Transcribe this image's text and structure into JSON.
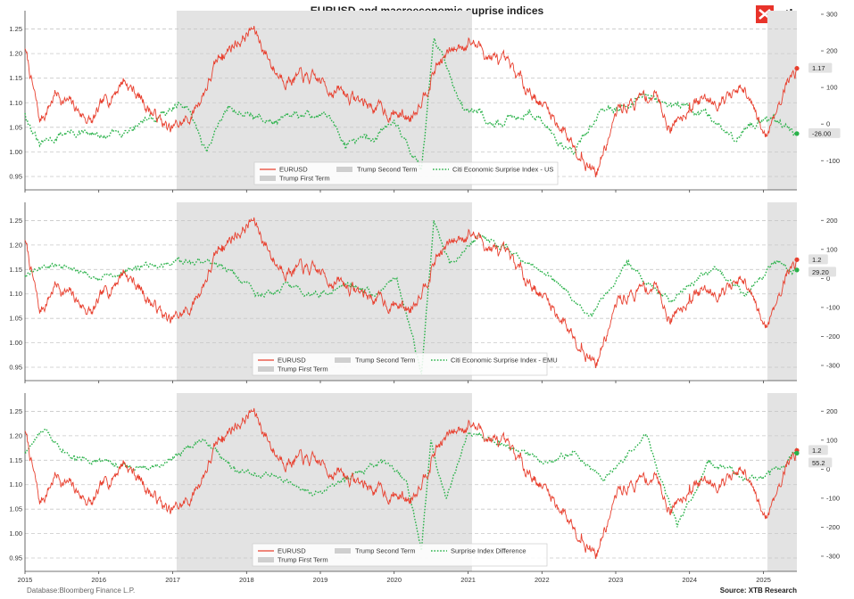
{
  "title": "EURUSD and macroeconomic suprise indices",
  "logo_text": "xtb",
  "footer": {
    "left": "Database:Bloomberg Finance L.P.",
    "right": "Source: XTB Research"
  },
  "colors": {
    "eurusd": "#e8402f",
    "surprise": "#2ab24a",
    "shade": "#e3e3e3",
    "grid": "#c8c8c8",
    "brand": "#e8332a"
  },
  "x_tick_labels": [
    "2015",
    "2016",
    "2017",
    "2018",
    "2019",
    "2020",
    "2021",
    "2022",
    "2023",
    "2024",
    "2025"
  ],
  "chart_data": [
    {
      "type": "line",
      "xlim": [
        "2015-01-01",
        "2025-06-15"
      ],
      "ylim_left": [
        0.93,
        1.28
      ],
      "ylim_right": [
        -170,
        300
      ],
      "left_ticks": [
        "0.95",
        "1.00",
        "1.05",
        "1.10",
        "1.15",
        "1.20",
        "1.25"
      ],
      "right_ticks": [
        "-100",
        "0",
        "100",
        "200",
        "300"
      ],
      "shaded_periods": [
        {
          "name": "Trump First Term",
          "start": "2017-01-20",
          "end": "2021-01-20"
        },
        {
          "name": "Trump Second Term",
          "start": "2025-01-20",
          "end": "2025-06-15"
        }
      ],
      "legend": [
        "EURUSD",
        "Trump Second Term",
        "Citi Economic Surprise Index - US",
        "Trump First Term"
      ],
      "last_value_tags": [
        "1.17",
        "-26.00"
      ],
      "series": [
        {
          "name": "EURUSD",
          "axis": "left",
          "values": [
            [
              "2015-01-01",
              1.21
            ],
            [
              "2015-03-15",
              1.06
            ],
            [
              "2015-06-01",
              1.12
            ],
            [
              "2015-12-01",
              1.06
            ],
            [
              "2016-05-01",
              1.15
            ],
            [
              "2016-12-20",
              1.04
            ],
            [
              "2017-04-01",
              1.07
            ],
            [
              "2017-09-01",
              1.2
            ],
            [
              "2018-02-01",
              1.25
            ],
            [
              "2018-06-01",
              1.16
            ],
            [
              "2019-01-01",
              1.14
            ],
            [
              "2019-10-01",
              1.09
            ],
            [
              "2020-03-20",
              1.07
            ],
            [
              "2020-08-01",
              1.18
            ],
            [
              "2021-01-06",
              1.23
            ],
            [
              "2021-11-01",
              1.13
            ],
            [
              "2022-07-15",
              1.0
            ],
            [
              "2022-09-27",
              0.96
            ],
            [
              "2023-01-20",
              1.09
            ],
            [
              "2023-07-15",
              1.12
            ],
            [
              "2023-10-01",
              1.05
            ],
            [
              "2024-01-01",
              1.1
            ],
            [
              "2024-09-25",
              1.12
            ],
            [
              "2025-01-10",
              1.03
            ],
            [
              "2025-04-21",
              1.14
            ],
            [
              "2025-06-15",
              1.17
            ]
          ]
        },
        {
          "name": "Citi Economic Surprise Index - US",
          "axis": "right",
          "values": [
            [
              "2015-01-01",
              30
            ],
            [
              "2015-03-15",
              -60
            ],
            [
              "2015-08-01",
              -20
            ],
            [
              "2016-02-01",
              -40
            ],
            [
              "2016-08-01",
              10
            ],
            [
              "2017-03-01",
              50
            ],
            [
              "2017-06-15",
              -70
            ],
            [
              "2017-10-01",
              50
            ],
            [
              "2018-05-01",
              5
            ],
            [
              "2019-01-15",
              30
            ],
            [
              "2019-05-01",
              -50
            ],
            [
              "2019-10-01",
              -40
            ],
            [
              "2020-01-01",
              10
            ],
            [
              "2020-05-15",
              -120
            ],
            [
              "2020-07-15",
              230
            ],
            [
              "2020-12-01",
              60
            ],
            [
              "2021-06-01",
              0
            ],
            [
              "2021-11-01",
              40
            ],
            [
              "2022-06-01",
              -80
            ],
            [
              "2022-10-01",
              20
            ],
            [
              "2023-06-01",
              80
            ],
            [
              "2024-04-01",
              20
            ],
            [
              "2024-08-01",
              -40
            ],
            [
              "2025-01-15",
              20
            ],
            [
              "2025-06-15",
              -26
            ]
          ]
        }
      ]
    },
    {
      "type": "line",
      "xlim": [
        "2015-01-01",
        "2025-06-15"
      ],
      "ylim_left": [
        0.93,
        1.28
      ],
      "ylim_right": [
        -340,
        250
      ],
      "left_ticks": [
        "0.95",
        "1.00",
        "1.05",
        "1.10",
        "1.15",
        "1.20",
        "1.25"
      ],
      "right_ticks": [
        "-300",
        "-200",
        "-100",
        "0",
        "100",
        "200"
      ],
      "shaded_periods": [
        {
          "name": "Trump First Term",
          "start": "2017-01-20",
          "end": "2021-01-20"
        },
        {
          "name": "Trump Second Term",
          "start": "2025-01-20",
          "end": "2025-06-15"
        }
      ],
      "legend": [
        "EURUSD",
        "Trump Second Term",
        "Citi Economic Surprise Index - EMU",
        "Trump First Term"
      ],
      "last_value_tags": [
        "1.2",
        "29.20"
      ],
      "series": [
        {
          "name": "EURUSD",
          "axis": "left",
          "values": [
            [
              "2015-01-01",
              1.21
            ],
            [
              "2015-03-15",
              1.06
            ],
            [
              "2015-06-01",
              1.12
            ],
            [
              "2015-12-01",
              1.06
            ],
            [
              "2016-05-01",
              1.15
            ],
            [
              "2016-12-20",
              1.04
            ],
            [
              "2017-04-01",
              1.07
            ],
            [
              "2017-09-01",
              1.2
            ],
            [
              "2018-02-01",
              1.25
            ],
            [
              "2018-06-01",
              1.16
            ],
            [
              "2019-01-01",
              1.14
            ],
            [
              "2019-10-01",
              1.09
            ],
            [
              "2020-03-20",
              1.07
            ],
            [
              "2020-08-01",
              1.18
            ],
            [
              "2021-01-06",
              1.23
            ],
            [
              "2021-11-01",
              1.13
            ],
            [
              "2022-07-15",
              1.0
            ],
            [
              "2022-09-27",
              0.96
            ],
            [
              "2023-01-20",
              1.09
            ],
            [
              "2023-07-15",
              1.12
            ],
            [
              "2023-10-01",
              1.05
            ],
            [
              "2024-01-01",
              1.1
            ],
            [
              "2024-09-25",
              1.12
            ],
            [
              "2025-01-10",
              1.03
            ],
            [
              "2025-04-21",
              1.14
            ],
            [
              "2025-06-15",
              1.17
            ]
          ]
        },
        {
          "name": "Citi Economic Surprise Index - EMU",
          "axis": "right",
          "values": [
            [
              "2015-01-01",
              10
            ],
            [
              "2015-06-01",
              50
            ],
            [
              "2016-01-01",
              0
            ],
            [
              "2016-07-01",
              40
            ],
            [
              "2017-03-01",
              60
            ],
            [
              "2017-09-01",
              50
            ],
            [
              "2018-03-01",
              -60
            ],
            [
              "2018-08-01",
              -30
            ],
            [
              "2019-01-01",
              -60
            ],
            [
              "2019-06-01",
              -20
            ],
            [
              "2019-10-01",
              -60
            ],
            [
              "2020-01-15",
              0
            ],
            [
              "2020-05-15",
              -330
            ],
            [
              "2020-07-15",
              200
            ],
            [
              "2020-10-01",
              50
            ],
            [
              "2021-03-01",
              150
            ],
            [
              "2021-07-01",
              100
            ],
            [
              "2021-12-01",
              40
            ],
            [
              "2022-05-01",
              -40
            ],
            [
              "2022-09-01",
              -120
            ],
            [
              "2023-03-01",
              50
            ],
            [
              "2023-10-01",
              -80
            ],
            [
              "2024-05-01",
              40
            ],
            [
              "2024-10-01",
              -60
            ],
            [
              "2025-03-01",
              50
            ],
            [
              "2025-06-15",
              29.2
            ]
          ]
        }
      ]
    },
    {
      "type": "line",
      "xlim": [
        "2015-01-01",
        "2025-06-15"
      ],
      "ylim_left": [
        0.93,
        1.28
      ],
      "ylim_right": [
        -340,
        250
      ],
      "left_ticks": [
        "0.95",
        "1.00",
        "1.05",
        "1.10",
        "1.15",
        "1.20",
        "1.25"
      ],
      "right_ticks": [
        "-300",
        "-200",
        "-100",
        "0",
        "100",
        "200"
      ],
      "shaded_periods": [
        {
          "name": "Trump First Term",
          "start": "2017-01-20",
          "end": "2021-01-20"
        },
        {
          "name": "Trump Second Term",
          "start": "2025-01-20",
          "end": "2025-06-15"
        }
      ],
      "legend": [
        "EURUSD",
        "Trump Second Term",
        "Surprise Index Difference",
        "Trump First Term"
      ],
      "last_value_tags": [
        "55.2",
        "1.2"
      ],
      "series": [
        {
          "name": "EURUSD",
          "axis": "left",
          "values": [
            [
              "2015-01-01",
              1.21
            ],
            [
              "2015-03-15",
              1.06
            ],
            [
              "2015-06-01",
              1.12
            ],
            [
              "2015-12-01",
              1.06
            ],
            [
              "2016-05-01",
              1.15
            ],
            [
              "2016-12-20",
              1.04
            ],
            [
              "2017-04-01",
              1.07
            ],
            [
              "2017-09-01",
              1.2
            ],
            [
              "2018-02-01",
              1.25
            ],
            [
              "2018-06-01",
              1.16
            ],
            [
              "2019-01-01",
              1.14
            ],
            [
              "2019-10-01",
              1.09
            ],
            [
              "2020-03-20",
              1.07
            ],
            [
              "2020-08-01",
              1.18
            ],
            [
              "2021-01-06",
              1.23
            ],
            [
              "2021-11-01",
              1.13
            ],
            [
              "2022-07-15",
              1.0
            ],
            [
              "2022-09-27",
              0.96
            ],
            [
              "2023-01-20",
              1.09
            ],
            [
              "2023-07-15",
              1.12
            ],
            [
              "2023-10-01",
              1.05
            ],
            [
              "2024-01-01",
              1.1
            ],
            [
              "2024-09-25",
              1.12
            ],
            [
              "2025-01-10",
              1.03
            ],
            [
              "2025-04-21",
              1.14
            ],
            [
              "2025-06-15",
              1.17
            ]
          ]
        },
        {
          "name": "Surprise Index Difference",
          "axis": "right",
          "values": [
            [
              "2015-01-01",
              60
            ],
            [
              "2015-04-01",
              130
            ],
            [
              "2015-09-01",
              50
            ],
            [
              "2016-03-01",
              20
            ],
            [
              "2016-09-01",
              0
            ],
            [
              "2017-01-01",
              40
            ],
            [
              "2017-06-01",
              100
            ],
            [
              "2017-11-01",
              10
            ],
            [
              "2018-06-01",
              -30
            ],
            [
              "2018-12-01",
              -90
            ],
            [
              "2019-05-01",
              -40
            ],
            [
              "2019-11-01",
              20
            ],
            [
              "2020-03-01",
              -40
            ],
            [
              "2020-05-15",
              -280
            ],
            [
              "2020-07-01",
              100
            ],
            [
              "2020-09-15",
              -100
            ],
            [
              "2021-01-01",
              120
            ],
            [
              "2021-06-01",
              100
            ],
            [
              "2022-01-01",
              20
            ],
            [
              "2022-06-01",
              60
            ],
            [
              "2022-11-01",
              -40
            ],
            [
              "2023-06-01",
              120
            ],
            [
              "2023-11-01",
              -200
            ],
            [
              "2024-04-01",
              20
            ],
            [
              "2024-10-01",
              -30
            ],
            [
              "2025-02-01",
              -20
            ],
            [
              "2025-06-15",
              55.2
            ]
          ]
        }
      ]
    }
  ]
}
